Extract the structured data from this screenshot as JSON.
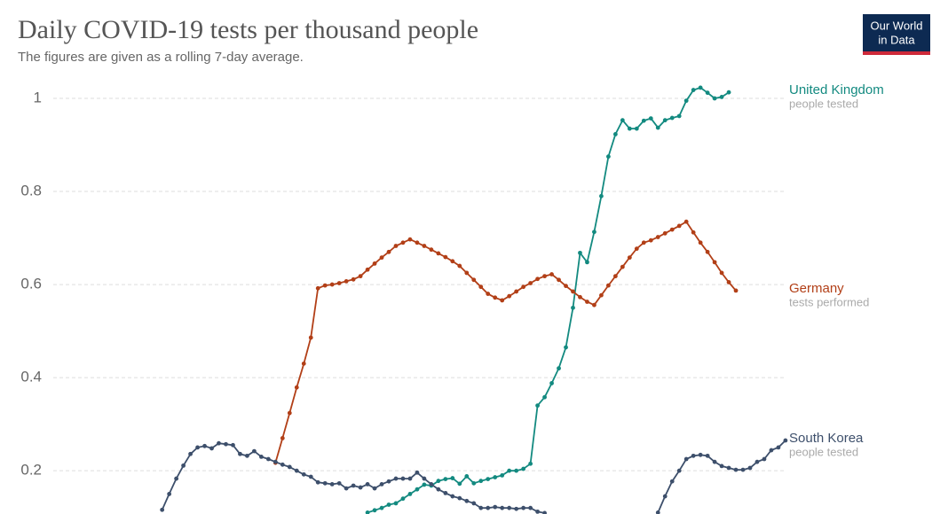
{
  "logo": [
    "Our World",
    "in Data"
  ],
  "chart_data": {
    "type": "line",
    "title": "Daily COVID-19 tests per thousand people",
    "subtitle": "The figures are given as a rolling 7-day average.",
    "categories": [
      null,
      null,
      null,
      null,
      null,
      null,
      null,
      null,
      null,
      null,
      null,
      null,
      null,
      null,
      null,
      null,
      null,
      null,
      null,
      null,
      null,
      null,
      null,
      null,
      null,
      null,
      null,
      null,
      null,
      null,
      null,
      null,
      null,
      null,
      null,
      null,
      null,
      null,
      null,
      null,
      null,
      null,
      null,
      null,
      null,
      null,
      null,
      null,
      null,
      null,
      null,
      null,
      null,
      null,
      null,
      null,
      null,
      null,
      null,
      null,
      null,
      null,
      null,
      null,
      null,
      null,
      null,
      null,
      null,
      null,
      null,
      null,
      null,
      null,
      null,
      null,
      null,
      null,
      null,
      null,
      null,
      null,
      null,
      null,
      null,
      null,
      null,
      null,
      null,
      null,
      null,
      null,
      null,
      null,
      null,
      null,
      null,
      null,
      null,
      null,
      null,
      null,
      null,
      null,
      null,
      null
    ],
    "ylim": [
      0.107,
      1.04
    ],
    "yticks": [
      0.2,
      0.4,
      0.6,
      0.8,
      1
    ],
    "grid": true,
    "series": [
      {
        "name": "United Kingdom",
        "annotation": "people tested",
        "color": "#138a80",
        "values": [
          null,
          null,
          null,
          null,
          null,
          null,
          null,
          null,
          null,
          null,
          null,
          null,
          null,
          null,
          null,
          null,
          null,
          null,
          null,
          null,
          null,
          null,
          null,
          null,
          null,
          null,
          null,
          null,
          null,
          null,
          null,
          null,
          null,
          null,
          null,
          null,
          null,
          null,
          null,
          null,
          null,
          null,
          null,
          null,
          null,
          null,
          0.11,
          0.115,
          0.12,
          0.127,
          0.13,
          0.14,
          0.15,
          0.16,
          0.17,
          0.168,
          0.178,
          0.182,
          0.184,
          0.172,
          0.188,
          0.173,
          0.178,
          0.182,
          0.186,
          0.19,
          0.2,
          0.2,
          0.204,
          0.215,
          0.34,
          0.358,
          0.388,
          0.42,
          0.465,
          0.55,
          0.668,
          0.648,
          0.713,
          0.79,
          0.875,
          0.923,
          0.953,
          0.935,
          0.935,
          0.952,
          0.957,
          0.937,
          0.953,
          0.958,
          0.962,
          0.995,
          1.018,
          1.023,
          1.012,
          1.0,
          1.003,
          1.013,
          null,
          null,
          null,
          null,
          null,
          null,
          null,
          null
        ]
      },
      {
        "name": "Germany",
        "annotation": "tests performed",
        "color": "#b23f17",
        "values": [
          null,
          null,
          null,
          null,
          null,
          null,
          null,
          null,
          null,
          null,
          null,
          null,
          null,
          null,
          null,
          null,
          null,
          null,
          null,
          null,
          null,
          null,
          null,
          null,
          null,
          null,
          null,
          null,
          null,
          null,
          null,
          null,
          null,
          0.217,
          0.27,
          0.324,
          0.379,
          0.43,
          0.486,
          0.592,
          0.598,
          0.6,
          0.603,
          0.607,
          0.611,
          0.618,
          0.632,
          0.645,
          0.658,
          0.67,
          0.683,
          0.69,
          0.697,
          0.69,
          0.683,
          0.675,
          0.667,
          0.659,
          0.65,
          0.64,
          0.625,
          0.61,
          0.595,
          0.58,
          0.572,
          0.566,
          0.575,
          0.585,
          0.595,
          0.603,
          0.612,
          0.618,
          0.622,
          0.61,
          0.597,
          0.585,
          0.573,
          0.563,
          0.556,
          0.577,
          0.598,
          0.618,
          0.638,
          0.658,
          0.677,
          0.69,
          0.695,
          0.702,
          0.71,
          0.718,
          0.726,
          0.735,
          0.712,
          0.69,
          0.67,
          0.648,
          0.625,
          0.605,
          0.587,
          null,
          null,
          null,
          null,
          null,
          null,
          null
        ]
      },
      {
        "name": "South Korea",
        "annotation": "people tested",
        "color": "#3d4f6b",
        "values": [
          null,
          null,
          null,
          null,
          null,
          null,
          null,
          null,
          null,
          null,
          null,
          null,
          null,
          null,
          null,
          null,
          null,
          0.116,
          0.15,
          0.183,
          0.211,
          0.236,
          0.25,
          0.253,
          0.248,
          0.259,
          0.257,
          0.255,
          0.236,
          0.232,
          0.242,
          0.23,
          0.225,
          0.219,
          0.213,
          0.208,
          0.2,
          0.192,
          0.187,
          0.175,
          0.173,
          0.171,
          0.173,
          0.162,
          0.168,
          0.164,
          0.171,
          0.162,
          0.171,
          0.177,
          0.183,
          0.183,
          0.183,
          0.196,
          0.183,
          0.171,
          0.16,
          0.152,
          0.145,
          0.141,
          0.135,
          0.13,
          0.12,
          0.12,
          0.122,
          0.12,
          0.12,
          0.118,
          0.12,
          0.12,
          0.112,
          0.109,
          null,
          null,
          null,
          null,
          null,
          null,
          null,
          null,
          null,
          null,
          null,
          null,
          null,
          null,
          null,
          0.11,
          0.145,
          0.177,
          0.2,
          0.225,
          0.232,
          0.234,
          0.232,
          0.219,
          0.21,
          0.206,
          0.202,
          0.202,
          0.206,
          0.219,
          0.225,
          0.244,
          0.25,
          0.265
        ]
      }
    ]
  }
}
